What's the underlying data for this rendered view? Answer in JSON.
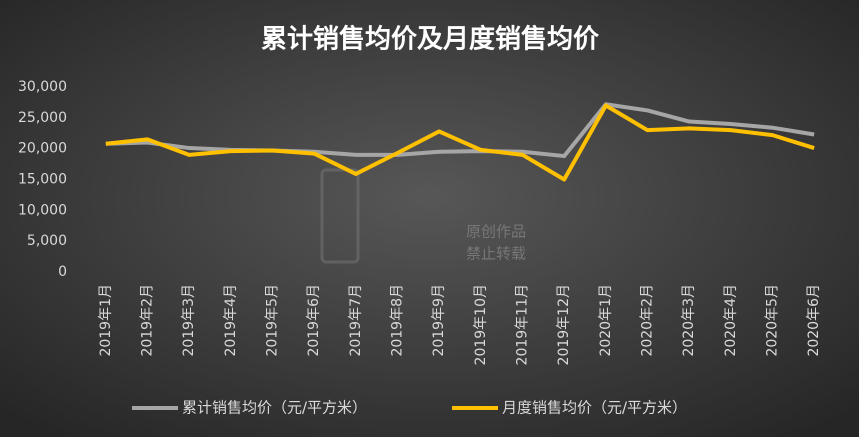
{
  "chart_data": {
    "type": "line",
    "title": "累计销售均价及月度销售均价",
    "categories": [
      "2019年1月",
      "2019年2月",
      "2019年3月",
      "2019年4月",
      "2019年5月",
      "2019年6月",
      "2019年7月",
      "2019年8月",
      "2019年9月",
      "2019年10月",
      "2019年11月",
      "2019年12月",
      "2020年1月",
      "2020年2月",
      "2020年3月",
      "2020年4月",
      "2020年5月",
      "2020年6月"
    ],
    "series": [
      {
        "name": "累计销售均价（元/平方米）",
        "color": "#a6a6a6",
        "values": [
          20800,
          21000,
          20100,
          19800,
          19700,
          19500,
          19000,
          19000,
          19500,
          19600,
          19500,
          18800,
          27200,
          26200,
          24400,
          24000,
          23400,
          22300
        ]
      },
      {
        "name": "月度销售均价（元/平方米）",
        "color": "#ffc000",
        "values": [
          20800,
          21500,
          19000,
          19600,
          19700,
          19200,
          15900,
          19300,
          22800,
          19800,
          19000,
          15000,
          27000,
          23000,
          23300,
          23000,
          22200,
          20100
        ]
      }
    ],
    "ylim": [
      0,
      30000
    ],
    "yticks": [
      0,
      {
        "value": 5000,
        "label": "5,000"
      },
      {
        "value": 10000,
        "label": "10,000"
      },
      {
        "value": 15000,
        "label": "15,000"
      },
      {
        "value": 20000,
        "label": "20,000"
      },
      {
        "value": 25000,
        "label": "25,000"
      },
      {
        "value": 30000,
        "label": "30,000"
      }
    ],
    "grid": false,
    "legend": "bottom",
    "watermark": [
      "原创作品",
      "禁止转载"
    ]
  }
}
